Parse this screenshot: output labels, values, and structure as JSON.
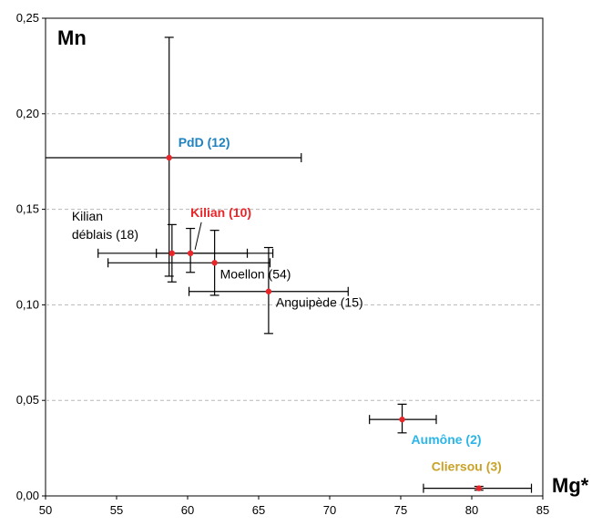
{
  "chart_data": {
    "type": "scatter",
    "xlabel": "Mg*",
    "ylabel": "Mn",
    "xlim": [
      50,
      85
    ],
    "ylim": [
      0,
      0.25
    ],
    "x_ticks": [
      50,
      55,
      60,
      65,
      70,
      75,
      80,
      85
    ],
    "y_ticks": [
      0.0,
      0.05,
      0.1,
      0.15,
      0.2,
      0.25
    ],
    "x_tick_labels": [
      "50",
      "55",
      "60",
      "65",
      "70",
      "75",
      "80",
      "85"
    ],
    "y_tick_labels": [
      "0,00",
      "0,05",
      "0,10",
      "0,15",
      "0,20",
      "0,25"
    ],
    "grid": "horizontal dashed",
    "marker_color": "#e8262a",
    "points": [
      {
        "label": "PdD (12)",
        "label_color": "#1f82c0",
        "label_bold": true,
        "x": 58.7,
        "y": 0.177,
        "x_err": [
          43.7,
          68.0
        ],
        "y_err": [
          0.115,
          0.24
        ]
      },
      {
        "label": "Kilian (10)",
        "label_color": "#e8262a",
        "label_bold": true,
        "x": 60.2,
        "y": 0.127,
        "x_err": [
          57.8,
          66.0
        ],
        "y_err": [
          0.117,
          0.14
        ]
      },
      {
        "label": "Kilian déblais (18)",
        "label_lines": [
          "Kilian",
          "déblais (18)"
        ],
        "label_color": "#000000",
        "label_bold": false,
        "x": 58.9,
        "y": 0.127,
        "x_err": [
          53.7,
          64.2
        ],
        "y_err": [
          0.112,
          0.142
        ]
      },
      {
        "label": "Moellon (54)",
        "label_color": "#000000",
        "label_bold": false,
        "x": 61.9,
        "y": 0.122,
        "x_err": [
          54.4,
          65.8
        ],
        "y_err": [
          0.105,
          0.139
        ]
      },
      {
        "label": "Anguipède (15)",
        "label_color": "#000000",
        "label_bold": false,
        "x": 65.7,
        "y": 0.107,
        "x_err": [
          60.1,
          71.3
        ],
        "y_err": [
          0.085,
          0.13
        ]
      },
      {
        "label": "Aumône (2)",
        "label_color": "#2ab6e8",
        "label_bold": true,
        "x": 75.1,
        "y": 0.04,
        "x_err": [
          72.8,
          77.5
        ],
        "y_err": [
          0.033,
          0.048
        ]
      },
      {
        "label": "Cliersou (3)",
        "label_color": "#c9a227",
        "label_bold": true,
        "x": 80.5,
        "y": 0.004,
        "x_err": [
          76.6,
          84.2
        ],
        "y_err": [
          0.003,
          0.005
        ]
      }
    ]
  }
}
